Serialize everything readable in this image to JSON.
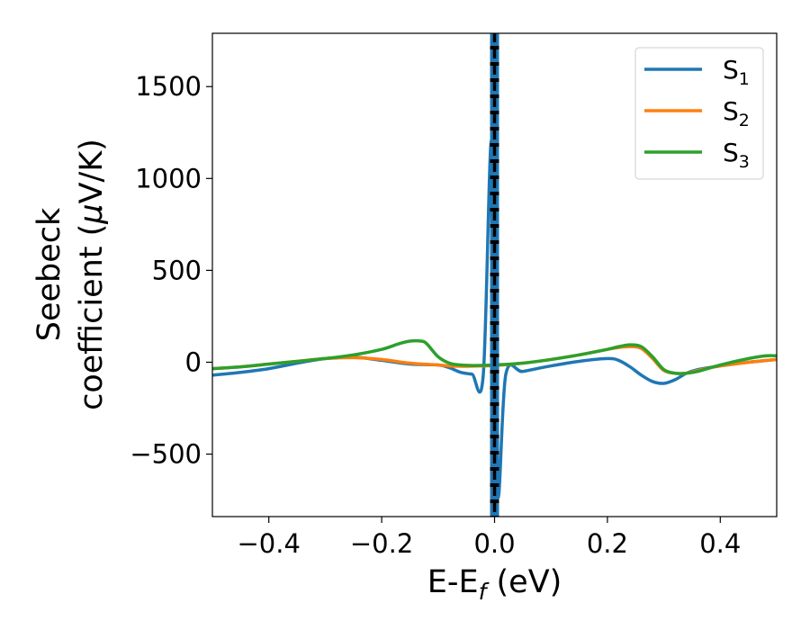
{
  "chart_data": {
    "type": "line",
    "xlabel": {
      "main": "E-E",
      "sub": "f",
      "tail": " (eV)"
    },
    "ylabel": {
      "line1": "Seebeck",
      "line2_text": "coefficient  (",
      "line2_mu": "μ",
      "line2_tail": "V/K)"
    },
    "xlim": [
      -0.5,
      0.5
    ],
    "ylim": [
      -840,
      1790
    ],
    "xticks": [
      -0.4,
      -0.2,
      0.0,
      0.2,
      0.4
    ],
    "xtick_labels": [
      "−0.4",
      "−0.2",
      "0.0",
      "0.2",
      "0.4"
    ],
    "yticks": [
      -500,
      0,
      500,
      1000,
      1500
    ],
    "ytick_labels": [
      "−500",
      "0",
      "500",
      "1000",
      "1500"
    ],
    "grid": false,
    "legend_position": "top-right",
    "vline": {
      "x": 0.0,
      "color": "#000000",
      "style": "dashed"
    },
    "series": [
      {
        "name": "S",
        "sub": "1",
        "color": "#1f77b4",
        "x": [
          -0.5,
          -0.45,
          -0.4,
          -0.35,
          -0.3,
          -0.25,
          -0.2,
          -0.15,
          -0.1,
          -0.08,
          -0.06,
          -0.04,
          -0.02,
          -0.005,
          0.005,
          0.02,
          0.05,
          0.1,
          0.15,
          0.2,
          0.22,
          0.24,
          0.26,
          0.28,
          0.3,
          0.32,
          0.34,
          0.36,
          0.4,
          0.45,
          0.5
        ],
        "y": [
          -70,
          -55,
          -35,
          -5,
          20,
          28,
          10,
          -10,
          -15,
          -30,
          -55,
          -65,
          -70,
          1200,
          -700,
          -65,
          -50,
          -20,
          5,
          20,
          10,
          -25,
          -70,
          -105,
          -115,
          -95,
          -60,
          -40,
          -20,
          0,
          15
        ]
      },
      {
        "name": "S",
        "sub": "2",
        "color": "#ff7f0e",
        "x": [
          -0.5,
          -0.45,
          -0.4,
          -0.35,
          -0.3,
          -0.25,
          -0.2,
          -0.15,
          -0.1,
          -0.08,
          -0.05,
          -0.02,
          0.0,
          0.05,
          0.1,
          0.15,
          0.2,
          0.22,
          0.24,
          0.26,
          0.28,
          0.3,
          0.32,
          0.34,
          0.36,
          0.4,
          0.45,
          0.5
        ],
        "y": [
          -35,
          -25,
          -10,
          5,
          20,
          25,
          15,
          -5,
          -15,
          -20,
          -22,
          -20,
          -18,
          -5,
          15,
          40,
          70,
          80,
          85,
          75,
          20,
          -45,
          -60,
          -60,
          -45,
          -20,
          0,
          15
        ]
      },
      {
        "name": "S",
        "sub": "3",
        "color": "#2ca02c",
        "x": [
          -0.5,
          -0.45,
          -0.4,
          -0.35,
          -0.3,
          -0.25,
          -0.2,
          -0.17,
          -0.15,
          -0.13,
          -0.12,
          -0.1,
          -0.08,
          -0.06,
          -0.04,
          -0.02,
          0.0,
          0.05,
          0.1,
          0.15,
          0.2,
          0.22,
          0.24,
          0.26,
          0.28,
          0.3,
          0.32,
          0.34,
          0.36,
          0.4,
          0.45,
          0.48,
          0.5
        ],
        "y": [
          -35,
          -25,
          -10,
          5,
          20,
          40,
          70,
          100,
          115,
          115,
          100,
          30,
          -5,
          -15,
          -18,
          -17,
          -15,
          -5,
          15,
          40,
          70,
          85,
          95,
          85,
          30,
          -40,
          -60,
          -60,
          -50,
          -15,
          20,
          35,
          35
        ]
      }
    ]
  }
}
